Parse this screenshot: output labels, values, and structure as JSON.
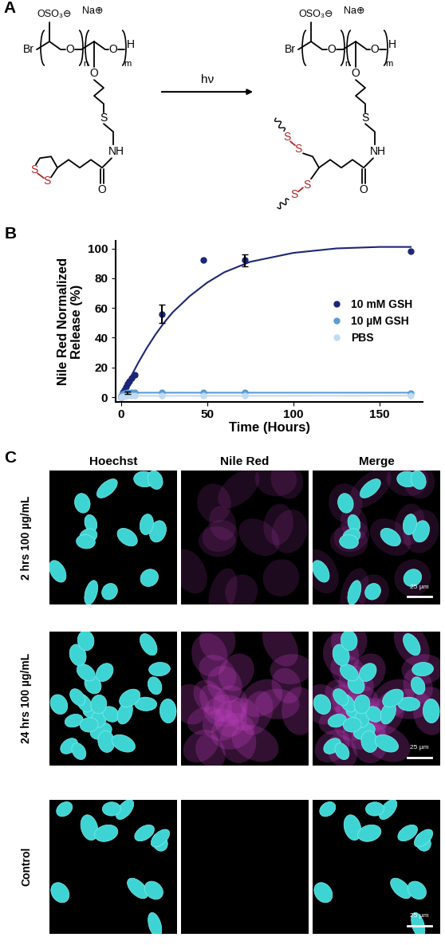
{
  "panel_labels": [
    "A",
    "B",
    "C"
  ],
  "scheme": {
    "arrow_label": "hν",
    "reactant": {
      "end_group": "Br",
      "sulfate": "OSO₃⊖",
      "counterion": "Na⊕",
      "repeat_1": "n",
      "repeat_2": "m",
      "chain_end": "H",
      "backbone_oxygens": [
        "O",
        "O"
      ],
      "ether_oxygen": "O",
      "thioether": "S",
      "amide": "NH",
      "carbonyl_oxygen": "O",
      "disulfide_sulfurs": [
        "S",
        "S"
      ]
    },
    "product": {
      "end_group": "Br",
      "sulfate": "OSO₃⊖",
      "counterion": "Na⊕",
      "repeat_1": "n",
      "repeat_2": "m",
      "chain_end": "H",
      "backbone_oxygens": [
        "O",
        "O"
      ],
      "ether_oxygen": "O",
      "thioether": "S",
      "amide": "NH",
      "carbonyl_oxygen": "O",
      "disulfide_sulfurs": [
        "S",
        "S",
        "S",
        "S"
      ]
    }
  },
  "chart_data": {
    "type": "scatter",
    "x_label": "Time (Hours)",
    "y_label": "Nile Red Normalized\nRelease (%)",
    "xlim": [
      -3,
      175
    ],
    "ylim": [
      -3,
      105
    ],
    "xticks": [
      0,
      50,
      100,
      150
    ],
    "yticks": [
      0,
      20,
      40,
      60,
      80,
      100
    ],
    "legend": "center right",
    "series": [
      {
        "name": "10 mM GSH",
        "type": "scatter",
        "color": "#1c2677",
        "marker": "circle",
        "x": [
          0,
          1,
          2,
          3,
          4,
          5,
          6,
          8,
          24,
          48,
          72,
          168
        ],
        "values": [
          0,
          3,
          5,
          7,
          9,
          11,
          13,
          15,
          56,
          92,
          92,
          98
        ],
        "errors": [
          null,
          null,
          null,
          null,
          null,
          null,
          null,
          null,
          6,
          null,
          4,
          null
        ]
      },
      {
        "name": "10 µM GSH",
        "type": "scatter",
        "color": "#5b9bd5",
        "marker": "circle",
        "x": [
          0,
          1,
          2,
          4,
          6,
          8,
          24,
          48,
          72,
          168
        ],
        "values": [
          1,
          2,
          2.5,
          3,
          3,
          3,
          3,
          3,
          3,
          2.5
        ],
        "errors": [
          null,
          null,
          null,
          1,
          null,
          null,
          null,
          null,
          null,
          null
        ]
      },
      {
        "name": "PBS",
        "type": "scatter",
        "color": "#c3dbf0",
        "marker": "circle",
        "x": [
          0,
          1,
          2,
          4,
          6,
          8,
          24,
          48,
          72,
          168
        ],
        "values": [
          0,
          0.5,
          0.5,
          1,
          1,
          1,
          1,
          1,
          1,
          1
        ],
        "errors": [
          null,
          null,
          null,
          null,
          null,
          null,
          null,
          null,
          null,
          null
        ]
      },
      {
        "type": "line",
        "color": "#1c2677",
        "line_style": "solid",
        "x": [
          0,
          5,
          10,
          15,
          20,
          25,
          30,
          40,
          50,
          60,
          75,
          100,
          125,
          150,
          168
        ],
        "values": [
          0,
          12,
          23,
          33,
          42,
          50,
          57,
          68,
          77,
          84,
          91,
          97,
          100,
          101,
          101
        ]
      },
      {
        "type": "line",
        "color": "#5b9bd5",
        "line_style": "solid",
        "x": [
          0,
          1,
          2,
          3,
          5,
          168
        ],
        "values": [
          0,
          1.5,
          2.3,
          2.7,
          3,
          3
        ]
      },
      {
        "type": "line",
        "color": "#c3dbf0",
        "line_style": "solid",
        "x": [
          0,
          2,
          5,
          168
        ],
        "values": [
          0,
          0.6,
          0.9,
          1
        ]
      }
    ]
  },
  "images": {
    "columns": [
      "Hoechst",
      "Nile Red",
      "Merge"
    ],
    "rows": [
      "2 hrs 100 µg/mL",
      "24 hrs 100 µg/mL",
      "Control"
    ],
    "scale_bar": "25 µm"
  }
}
